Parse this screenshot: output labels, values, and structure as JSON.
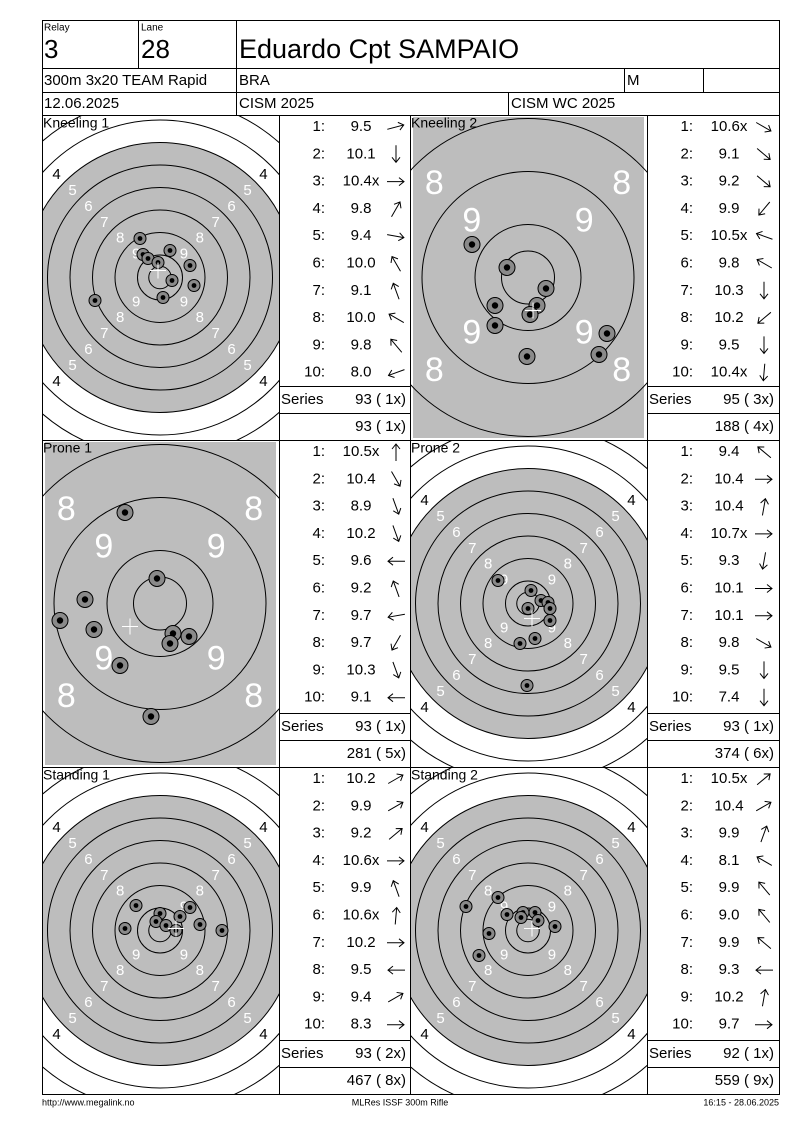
{
  "header": {
    "relay_label": "Relay",
    "relay": "3",
    "lane_label": "Lane",
    "lane": "28",
    "name": "Eduardo Cpt SAMPAIO",
    "event": "300m 3x20 TEAM Rapid",
    "nation": "BRA",
    "gender": "M",
    "date": "12.06.2025",
    "competition": "CISM 2025",
    "match": "CISM WC 2025"
  },
  "shot_labels": [
    "1:",
    "2:",
    "3:",
    "4:",
    "5:",
    "6:",
    "7:",
    "8:",
    "9:",
    "10:"
  ],
  "series_label": "Series",
  "series": [
    {
      "title": "Kneeling 1",
      "rings": [
        4,
        5,
        6,
        7,
        8,
        9
      ],
      "shots": [
        "9.5",
        "10.1",
        "10.4x",
        "9.8",
        "9.4",
        "10.0",
        "9.1",
        "10.0",
        "9.8",
        "8.0"
      ],
      "series_total": "93 ( 1x)",
      "running_total": "93 ( 1x)"
    },
    {
      "title": "Kneeling 2",
      "rings": [
        8,
        9
      ],
      "shots": [
        "10.6x",
        "9.1",
        "9.2",
        "9.9",
        "10.5x",
        "9.8",
        "10.3",
        "10.2",
        "9.5",
        "10.4x"
      ],
      "series_total": "95 ( 3x)",
      "running_total": "188 ( 4x)"
    },
    {
      "title": "Prone 1",
      "rings": [
        8,
        9
      ],
      "shots": [
        "10.5x",
        "10.4",
        "8.9",
        "10.2",
        "9.6",
        "9.2",
        "9.7",
        "9.7",
        "10.3",
        "9.1"
      ],
      "series_total": "93 ( 1x)",
      "running_total": "281 ( 5x)"
    },
    {
      "title": "Prone 2",
      "rings": [
        4,
        5,
        6,
        7,
        8,
        9
      ],
      "shots": [
        "9.4",
        "10.4",
        "10.4",
        "10.7x",
        "9.3",
        "10.1",
        "10.1",
        "9.8",
        "9.5",
        "7.4"
      ],
      "series_total": "93 ( 1x)",
      "running_total": "374 ( 6x)"
    },
    {
      "title": "Standing 1",
      "rings": [
        4,
        5,
        6,
        7,
        8,
        9
      ],
      "shots": [
        "10.2",
        "9.9",
        "9.2",
        "10.6x",
        "9.9",
        "10.6x",
        "10.2",
        "9.5",
        "9.4",
        "8.3"
      ],
      "series_total": "93 ( 2x)",
      "running_total": "467 ( 8x)"
    },
    {
      "title": "Standing 2",
      "rings": [
        4,
        5,
        6,
        7,
        8,
        9
      ],
      "shots": [
        "10.5x",
        "10.4",
        "9.9",
        "8.1",
        "9.9",
        "9.0",
        "9.9",
        "9.3",
        "10.2",
        "9.7"
      ],
      "series_total": "92 ( 1x)",
      "running_total": "559 ( 9x)"
    }
  ],
  "footer": {
    "left": "http://www.megalink.no",
    "center": "MLRes ISSF 300m Rifle",
    "right": "16:15 - 28.06.2025"
  }
}
